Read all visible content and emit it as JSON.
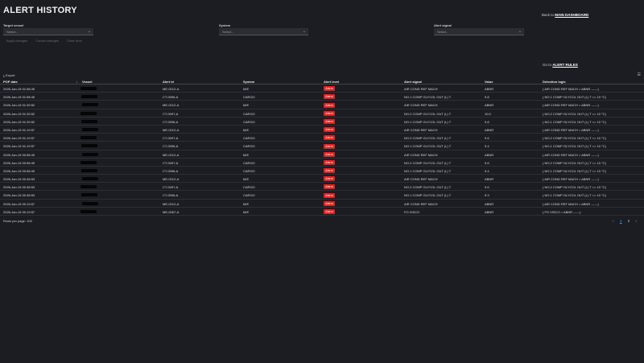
{
  "title": "ALERT HISTORY",
  "back_link": {
    "prefix": "Back to",
    "label": "MAIN DASHBOARD"
  },
  "filters": {
    "target_vessel": {
      "label": "Target vessel",
      "placeholder": "Select..."
    },
    "system": {
      "label": "System",
      "placeholder": "Select..."
    },
    "alert_signal": {
      "label": "Alert signal",
      "placeholder": "Select..."
    }
  },
  "actions": {
    "apply": "Apply changes",
    "cancel": "Cancel changes",
    "clear": "Clear form"
  },
  "rules_link": {
    "prefix": "Go to",
    "label": "ALERT RULES"
  },
  "export_label": "Export",
  "columns": {
    "pop_date": "POP date",
    "vessel": "Vessel",
    "alert_id": "Alert id",
    "system": "System",
    "alert_level": "Alert level",
    "alert_signal": "Alert signal",
    "value": "Value",
    "detection_logic": "Detection logic"
  },
  "rows": [
    {
      "date": "2026-Jan-15 01:58:49",
      "id": "ME-0212-A",
      "system": "M/E",
      "level": "Alarm",
      "signal": "AIR COND REF MACH",
      "value": "ABNR",
      "logic": "( AIR COND REF MACH = ABNR ------)"
    },
    {
      "date": "2026-Jan-15 01:58:49",
      "id": "CT-0096-A",
      "system": "CARGO",
      "level": "Alarm",
      "signal": "NO.1 COMP GLYCOL OUT (L) T",
      "value": "9.8",
      "logic": "( NO.1 COMP GLYCOL OUT (L) T <= 10 °C)"
    },
    {
      "date": "2026-Jan-15 01:39:52",
      "id": "ME-0212-A",
      "system": "M/E",
      "level": "Alarm",
      "signal": "AIR COND REF MACH",
      "value": "ABNR",
      "logic": "( AIR COND REF MACH = ABNR ------)"
    },
    {
      "date": "2026-Jan-15 01:39:52",
      "id": "CT-0097-A",
      "system": "CARGO",
      "level": "Alarm",
      "signal": "NO.2 COMP GLYCOL OUT (L) T",
      "value": "10.0",
      "logic": "( NO.2 COMP GLYCOL OUT (L) T <= 10 °C)"
    },
    {
      "date": "2026-Jan-15 01:39:52",
      "id": "CT-0096-A",
      "system": "CARGO",
      "level": "Alarm",
      "signal": "NO.1 COMP GLYCOL OUT (L) T",
      "value": "9.8",
      "logic": "( NO.1 COMP GLYCOL OUT (L) T <= 10 °C)"
    },
    {
      "date": "2026-Jan-15 01:19:57",
      "id": "ME-0212-A",
      "system": "M/E",
      "level": "Alarm",
      "signal": "AIR COND REF MACH",
      "value": "ABNR",
      "logic": "( AIR COND REF MACH = ABNR ------)"
    },
    {
      "date": "2026-Jan-15 01:19:57",
      "id": "CT-0097-A",
      "system": "CARGO",
      "level": "Alarm",
      "signal": "NO.2 COMP GLYCOL OUT (L) T",
      "value": "9.6",
      "logic": "( NO.2 COMP GLYCOL OUT (L) T <= 10 °C)"
    },
    {
      "date": "2026-Jan-15 01:19:57",
      "id": "CT-0096-A",
      "system": "CARGO",
      "level": "Alarm",
      "signal": "NO.1 COMP GLYCOL OUT (L) T",
      "value": "9.4",
      "logic": "( NO.1 COMP GLYCOL OUT (L) T <= 10 °C)"
    },
    {
      "date": "2026-Jan-15 00:58:49",
      "id": "ME-0212-A",
      "system": "M/E",
      "level": "Alarm",
      "signal": "AIR COND REF MACH",
      "value": "ABNR",
      "logic": "( AIR COND REF MACH = ABNR ------)"
    },
    {
      "date": "2026-Jan-15 00:58:49",
      "id": "CT-0097-A",
      "system": "CARGO",
      "level": "Alarm",
      "signal": "NO.2 COMP GLYCOL OUT (L) T",
      "value": "9.6",
      "logic": "( NO.2 COMP GLYCOL OUT (L) T <= 10 °C)"
    },
    {
      "date": "2026-Jan-15 00:58:49",
      "id": "CT-0096-A",
      "system": "CARGO",
      "level": "Alarm",
      "signal": "NO.1 COMP GLYCOL OUT (L) T",
      "value": "9.4",
      "logic": "( NO.1 COMP GLYCOL OUT (L) T <= 10 °C)"
    },
    {
      "date": "2026-Jan-15 00:38:53",
      "id": "ME-0212-A",
      "system": "M/E",
      "level": "Alarm",
      "signal": "AIR COND REF MACH",
      "value": "ABNR",
      "logic": "( AIR COND REF MACH = ABNR ------)"
    },
    {
      "date": "2026-Jan-15 00:38:53",
      "id": "CT-0097-A",
      "system": "CARGO",
      "level": "Alarm",
      "signal": "NO.2 COMP GLYCOL OUT (L) T",
      "value": "9.6",
      "logic": "( NO.2 COMP GLYCOL OUT (L) T <= 10 °C)"
    },
    {
      "date": "2026-Jan-15 00:38:53",
      "id": "CT-0096-A",
      "system": "CARGO",
      "level": "Alarm",
      "signal": "NO.1 COMP GLYCOL OUT (L) T",
      "value": "9.3",
      "logic": "( NO.1 COMP GLYCOL OUT (L) T <= 10 °C)"
    },
    {
      "date": "2026-Jan-15 00:19:57",
      "id": "ME-0212-A",
      "system": "M/E",
      "level": "Alarm",
      "signal": "AIR COND REF MACH",
      "value": "ABNR",
      "logic": "( AIR COND REF MACH = ABNR ------)"
    },
    {
      "date": "2026-Jan-15 00:19:57",
      "id": "ME-0067-A",
      "system": "M/E",
      "level": "Alarm",
      "signal": "FO VISCO",
      "value": "ABNR",
      "logic": "( FO VISCO = ABNR ------)"
    }
  ],
  "footer": {
    "rows_per_page": "Rows per page: 100"
  },
  "pagination": {
    "prev": "‹",
    "page1": "1",
    "page2": "2",
    "next": "›"
  },
  "colors": {
    "background": "#1b1d22",
    "alarm": "#e8201e",
    "link": "#4ea1ff"
  }
}
